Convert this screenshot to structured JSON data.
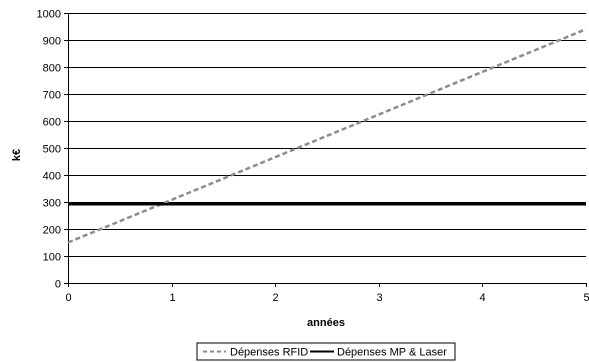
{
  "chart_data": {
    "type": "line",
    "title": "",
    "xlabel": "années",
    "ylabel": "k€",
    "xlim": [
      0,
      5
    ],
    "ylim": [
      0,
      1000
    ],
    "x_ticks": [
      0,
      1,
      2,
      3,
      4,
      5
    ],
    "y_ticks": [
      0,
      100,
      200,
      300,
      400,
      500,
      600,
      700,
      800,
      900,
      1000
    ],
    "grid": "horizontal",
    "legend_position": "bottom",
    "series": [
      {
        "name": "Dépenses RFID",
        "style": "dashed",
        "color": "#8c8c8c",
        "x": [
          0,
          5
        ],
        "values": [
          150,
          940
        ]
      },
      {
        "name": "Dépenses MP & Laser",
        "style": "solid",
        "color": "#000000",
        "x": [
          0,
          5
        ],
        "values": [
          292,
          292
        ]
      }
    ]
  }
}
